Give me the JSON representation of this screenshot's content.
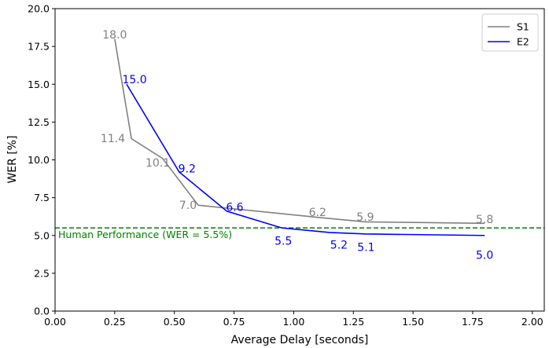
{
  "chart_data": {
    "type": "line",
    "xlabel": "Average Delay [seconds]",
    "ylabel": "WER [%]",
    "xlim": [
      0.0,
      2.05
    ],
    "ylim": [
      0.0,
      20.0
    ],
    "xticks": [
      "0.00",
      "0.25",
      "0.50",
      "0.75",
      "1.00",
      "1.25",
      "1.50",
      "1.75",
      "2.00"
    ],
    "yticks": [
      "0.0",
      "2.5",
      "5.0",
      "7.5",
      "10.0",
      "12.5",
      "15.0",
      "17.5",
      "20.0"
    ],
    "grid": false,
    "legend_position": "top-right",
    "series": [
      {
        "name": "S1",
        "color": "#808080",
        "x": [
          0.25,
          0.32,
          0.45,
          0.6,
          1.1,
          1.3,
          1.8
        ],
        "y": [
          18.0,
          11.4,
          10.1,
          7.0,
          6.2,
          5.9,
          5.8
        ],
        "labels": [
          "18.0",
          "11.4",
          "10.1",
          "7.0",
          "6.2",
          "5.9",
          "5.8"
        ]
      },
      {
        "name": "E2",
        "color": "#0000ff",
        "x": [
          0.3,
          0.52,
          0.72,
          0.95,
          1.15,
          1.3,
          1.8
        ],
        "y": [
          15.0,
          9.2,
          6.6,
          5.5,
          5.2,
          5.1,
          5.0
        ],
        "labels": [
          "15.0",
          "9.2",
          "6.6",
          "5.5",
          "5.2",
          "5.1",
          "5.0"
        ]
      }
    ],
    "reference_line": {
      "y": 5.5,
      "label": "Human Performance (WER = 5.5%)",
      "color": "#008000",
      "style": "dashed"
    }
  }
}
